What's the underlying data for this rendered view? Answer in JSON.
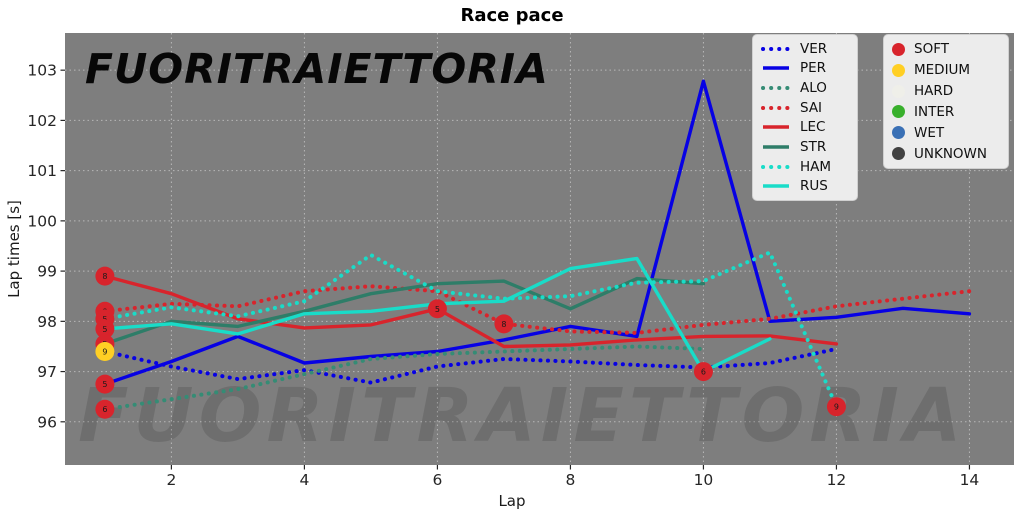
{
  "watermark": {
    "top": "FUORITRAIETTORIA",
    "bottom": "FUORITRAIETTORIA"
  },
  "colors": {
    "figure_bg": "#ffffff",
    "plot_bg": "#7e7e7e",
    "grid": "rgba(255,255,255,0.45)",
    "tick_text": "#262626",
    "marker_digit": "#1a1a1a"
  },
  "chart_data": {
    "type": "line",
    "title": "Race pace",
    "xlabel": "Lap",
    "ylabel": "Lap times [s]",
    "xlim": [
      0.4,
      14.67
    ],
    "ylim": [
      95.14,
      103.74
    ],
    "x_ticks": [
      2,
      4,
      6,
      8,
      10,
      12,
      14
    ],
    "y_ticks": [
      96,
      97,
      98,
      99,
      100,
      101,
      102,
      103
    ],
    "grid": true,
    "legend_position": "top-right",
    "series": [
      {
        "name": "VER",
        "color": "#0701e4",
        "style": "dotted",
        "x": [
          1,
          2,
          3,
          4,
          5,
          6,
          7,
          8,
          9,
          10,
          11,
          12
        ],
        "values": [
          97.4,
          97.1,
          96.85,
          97.03,
          96.78,
          97.1,
          97.25,
          97.2,
          97.13,
          97.08,
          97.17,
          97.45
        ]
      },
      {
        "name": "PER",
        "color": "#0701e4",
        "style": "solid",
        "x": [
          1,
          2,
          3,
          4,
          5,
          6,
          7,
          8,
          9,
          10,
          11,
          12,
          13,
          14
        ],
        "values": [
          96.75,
          97.2,
          97.7,
          97.17,
          97.3,
          97.4,
          97.63,
          97.9,
          97.7,
          102.78,
          98.0,
          98.08,
          98.26,
          98.15
        ]
      },
      {
        "name": "ALO",
        "color": "#358c75",
        "style": "dotted",
        "x": [
          1,
          2,
          3,
          4,
          5,
          6,
          7,
          8,
          9,
          10
        ],
        "values": [
          96.25,
          96.45,
          96.65,
          96.95,
          97.25,
          97.35,
          97.4,
          97.45,
          97.5,
          97.45
        ]
      },
      {
        "name": "SAI",
        "color": "#d8242c",
        "style": "dotted",
        "x": [
          1,
          2,
          3,
          4,
          5,
          6,
          7,
          8,
          9,
          10,
          11,
          12,
          13,
          14
        ],
        "values": [
          98.2,
          98.35,
          98.3,
          98.6,
          98.7,
          98.6,
          97.95,
          97.8,
          97.77,
          97.93,
          98.05,
          98.3,
          98.45,
          98.6
        ]
      },
      {
        "name": "LEC",
        "color": "#d8242c",
        "style": "solid",
        "x": [
          1,
          2,
          3,
          4,
          5,
          6,
          7,
          8,
          9,
          10,
          11,
          12
        ],
        "values": [
          98.9,
          98.55,
          98.05,
          97.87,
          97.93,
          98.25,
          97.5,
          97.53,
          97.63,
          97.7,
          97.71,
          97.55
        ]
      },
      {
        "name": "STR",
        "color": "#2e7d68",
        "style": "solid",
        "x": [
          1,
          2,
          3,
          4,
          5,
          6,
          7,
          8,
          9,
          10
        ],
        "values": [
          97.55,
          98.0,
          97.9,
          98.2,
          98.55,
          98.75,
          98.8,
          98.25,
          98.85,
          98.75
        ]
      },
      {
        "name": "HAM",
        "color": "#19dcc8",
        "style": "dotted",
        "x": [
          1,
          2,
          3,
          4,
          5,
          6,
          7,
          8,
          9,
          10,
          11,
          12
        ],
        "values": [
          98.05,
          98.28,
          98.1,
          98.4,
          99.32,
          98.6,
          98.45,
          98.5,
          98.77,
          98.8,
          99.37,
          96.3
        ]
      },
      {
        "name": "RUS",
        "color": "#19dcc8",
        "style": "solid",
        "x": [
          1,
          2,
          3,
          4,
          5,
          6,
          7,
          8,
          9,
          10,
          11
        ],
        "values": [
          97.85,
          97.95,
          97.75,
          98.15,
          98.2,
          98.35,
          98.4,
          99.05,
          99.25,
          97.0,
          97.65
        ]
      }
    ],
    "markers": [
      {
        "series": "LEC",
        "lap": 1,
        "time": 98.9,
        "compound": "SOFT",
        "label": "8"
      },
      {
        "series": "SAI",
        "lap": 1,
        "time": 98.2,
        "compound": "SOFT",
        "label": "8"
      },
      {
        "series": "HAM",
        "lap": 1,
        "time": 98.05,
        "compound": "SOFT",
        "label": "5"
      },
      {
        "series": "RUS",
        "lap": 1,
        "time": 97.85,
        "compound": "SOFT",
        "label": "5"
      },
      {
        "series": "STR",
        "lap": 1,
        "time": 97.55,
        "compound": "SOFT",
        "label": "5"
      },
      {
        "series": "VER",
        "lap": 1,
        "time": 97.4,
        "compound": "MEDIUM",
        "label": "9"
      },
      {
        "series": "PER",
        "lap": 1,
        "time": 96.75,
        "compound": "SOFT",
        "label": "5"
      },
      {
        "series": "ALO",
        "lap": 1,
        "time": 96.25,
        "compound": "SOFT",
        "label": "6"
      },
      {
        "series": "LEC",
        "lap": 6,
        "time": 98.25,
        "compound": "SOFT",
        "label": "5"
      },
      {
        "series": "SAI",
        "lap": 7,
        "time": 97.95,
        "compound": "SOFT",
        "label": "8"
      },
      {
        "series": "RUS",
        "lap": 10,
        "time": 97.0,
        "compound": "SOFT",
        "label": "6"
      },
      {
        "series": "HAM",
        "lap": 12,
        "time": 96.3,
        "compound": "SOFT",
        "label": "9"
      }
    ],
    "tire_legend": [
      {
        "label": "SOFT",
        "color": "#d8242c"
      },
      {
        "label": "MEDIUM",
        "color": "#ffcf24"
      },
      {
        "label": "HARD",
        "color": "#efefe9"
      },
      {
        "label": "INTER",
        "color": "#38b02c"
      },
      {
        "label": "WET",
        "color": "#3a70b5"
      },
      {
        "label": "UNKNOWN",
        "color": "#424242"
      }
    ]
  }
}
